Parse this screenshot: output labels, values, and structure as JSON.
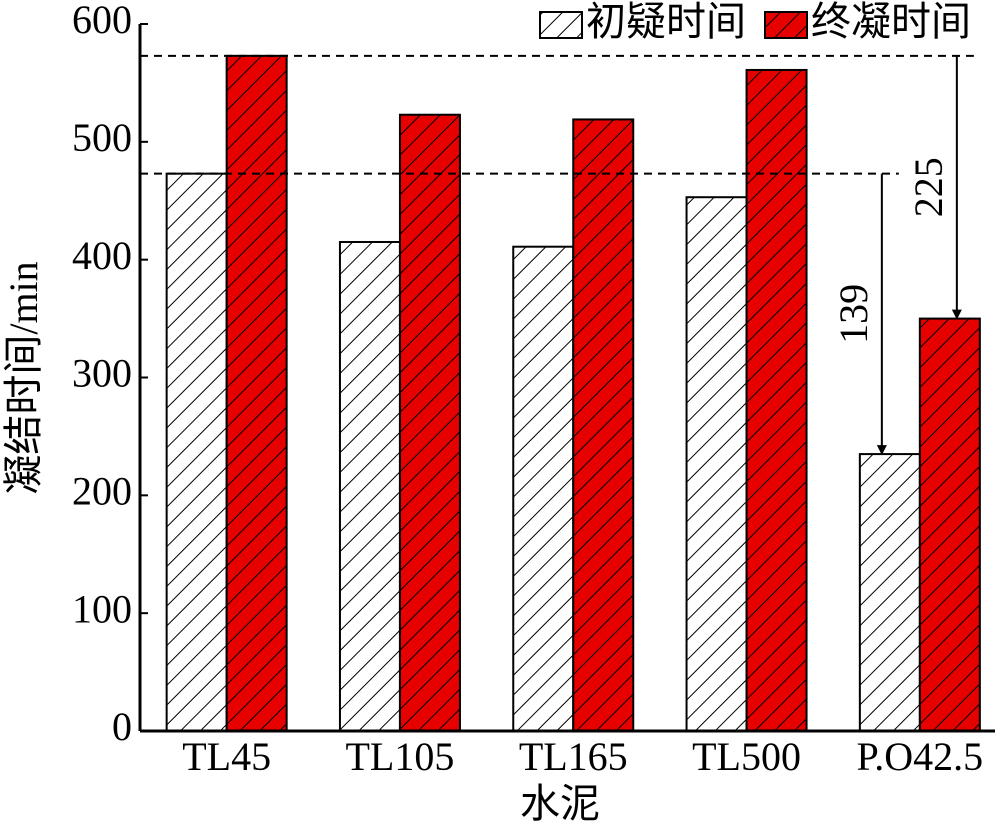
{
  "chart_data": {
    "type": "bar",
    "x_label": "水泥",
    "y_label": "凝结时间/min",
    "categories": [
      "TL45",
      "TL105",
      "TL165",
      "TL500",
      "P.O42.5"
    ],
    "series": [
      {
        "name": "初疑时间",
        "color": "#ffffff",
        "values": [
          473,
          415,
          411,
          453,
          235
        ]
      },
      {
        "name": "终凝时间",
        "color": "#e60000",
        "values": [
          573,
          523,
          519,
          561,
          350
        ]
      }
    ],
    "ylim": [
      0,
      600
    ],
    "yticks": [
      0,
      100,
      200,
      300,
      400,
      500,
      600
    ],
    "annotations": [
      "139",
      "225"
    ]
  }
}
